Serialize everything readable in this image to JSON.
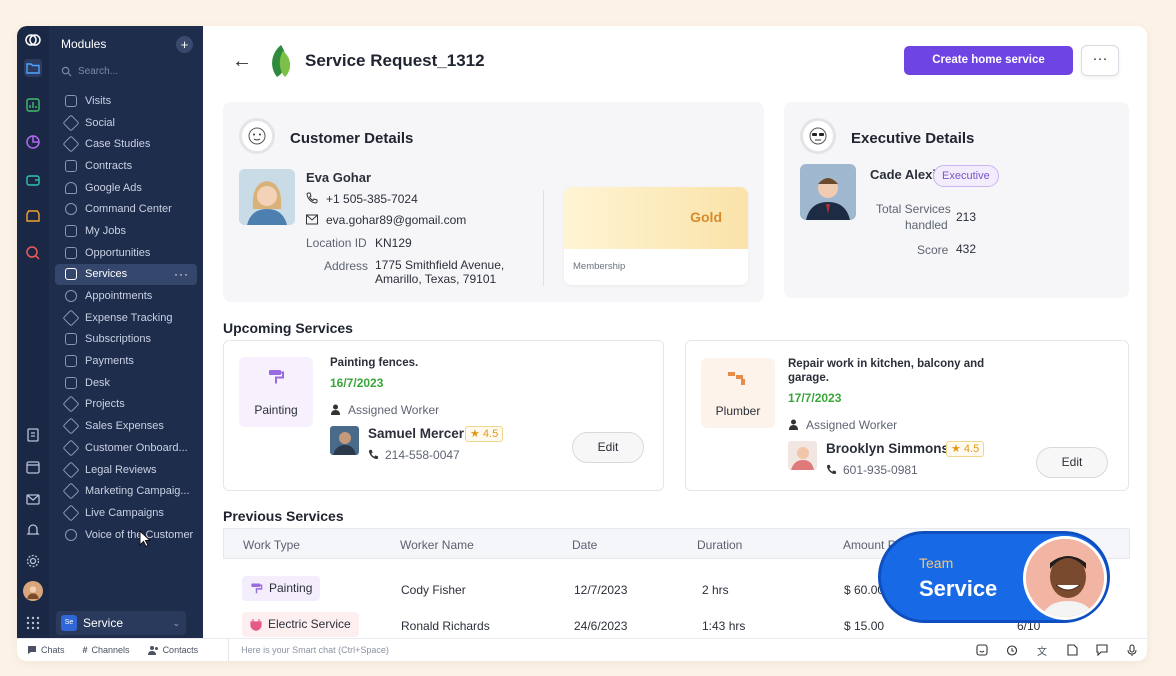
{
  "sidebar": {
    "header": "Modules",
    "search_placeholder": "Search...",
    "items": [
      {
        "label": "Visits"
      },
      {
        "label": "Social"
      },
      {
        "label": "Case Studies"
      },
      {
        "label": "Contracts"
      },
      {
        "label": "Google Ads"
      },
      {
        "label": "Command Center"
      },
      {
        "label": "My Jobs"
      },
      {
        "label": "Opportunities"
      },
      {
        "label": "Services",
        "active": true
      },
      {
        "label": "Appointments"
      },
      {
        "label": "Expense Tracking"
      },
      {
        "label": "Subscriptions"
      },
      {
        "label": "Payments"
      },
      {
        "label": "Desk"
      },
      {
        "label": "Projects"
      },
      {
        "label": "Sales Expenses"
      },
      {
        "label": "Customer Onboard..."
      },
      {
        "label": "Legal Reviews"
      },
      {
        "label": "Marketing Campaig..."
      },
      {
        "label": "Live Campaigns"
      },
      {
        "label": "Voice of the Customer"
      }
    ],
    "workspace": {
      "badge": "Se",
      "label": "Service"
    }
  },
  "header": {
    "title": "Service Request_1312",
    "primary_button": "Create home service",
    "more_button": "···"
  },
  "customer": {
    "heading": "Customer Details",
    "name": "Eva Gohar",
    "phone": "+1 505-385-7024",
    "email": "eva.gohar89@gomail.com",
    "location_label": "Location ID",
    "location_value": "KN129",
    "address_label": "Address",
    "address_line1": "1775 Smithfield Avenue,",
    "address_line2": "Amarillo, Texas, 79101",
    "membership_tier": "Gold",
    "membership_label": "Membership"
  },
  "executive": {
    "heading": "Executive Details",
    "name": "Cade Alexis",
    "role": "Executive",
    "services_label_1": "Total Services",
    "services_label_2": "handled",
    "services_value": "213",
    "score_label": "Score",
    "score_value": "432"
  },
  "upcoming": {
    "heading": "Upcoming Services",
    "cards": [
      {
        "type": "Painting",
        "title": "Painting fences.",
        "title2": "",
        "date": "16/7/2023",
        "assigned_label": "Assigned Worker",
        "worker": "Samuel Mercer",
        "rating": "4.5",
        "phone": "214-558-0047",
        "edit": "Edit"
      },
      {
        "type": "Plumber",
        "title": "Repair work in kitchen, balcony and",
        "title2": "garage.",
        "date": "17/7/2023",
        "assigned_label": "Assigned Worker",
        "worker": "Brooklyn Simmons",
        "rating": "4.5",
        "phone": "601-935-0981",
        "edit": "Edit"
      }
    ]
  },
  "previous": {
    "heading": "Previous Services",
    "columns": [
      "Work Type",
      "Worker Name",
      "Date",
      "Duration",
      "Amount P"
    ],
    "rows": [
      {
        "type": "Painting",
        "worker": "Cody Fisher",
        "date": "12/7/2023",
        "duration": "2 hrs",
        "amount": "$ 60.00",
        "extra": ""
      },
      {
        "type": "Electric Service",
        "worker": "Ronald Richards",
        "date": "24/6/2023",
        "duration": "1:43 hrs",
        "amount": "$ 15.00",
        "extra": "6/10"
      }
    ]
  },
  "team_badge": {
    "top": "Team",
    "bottom": "Service"
  },
  "bottombar": {
    "chats": "Chats",
    "channels": "Channels",
    "contacts": "Contacts",
    "smart_chat": "Here is your Smart chat (Ctrl+Space)"
  },
  "colors": {
    "accent": "#6e45e2",
    "sidebar": "#1f2d4c",
    "rail": "#1b2845",
    "date_green": "#3aa63a",
    "gold": "#d98a2b"
  }
}
